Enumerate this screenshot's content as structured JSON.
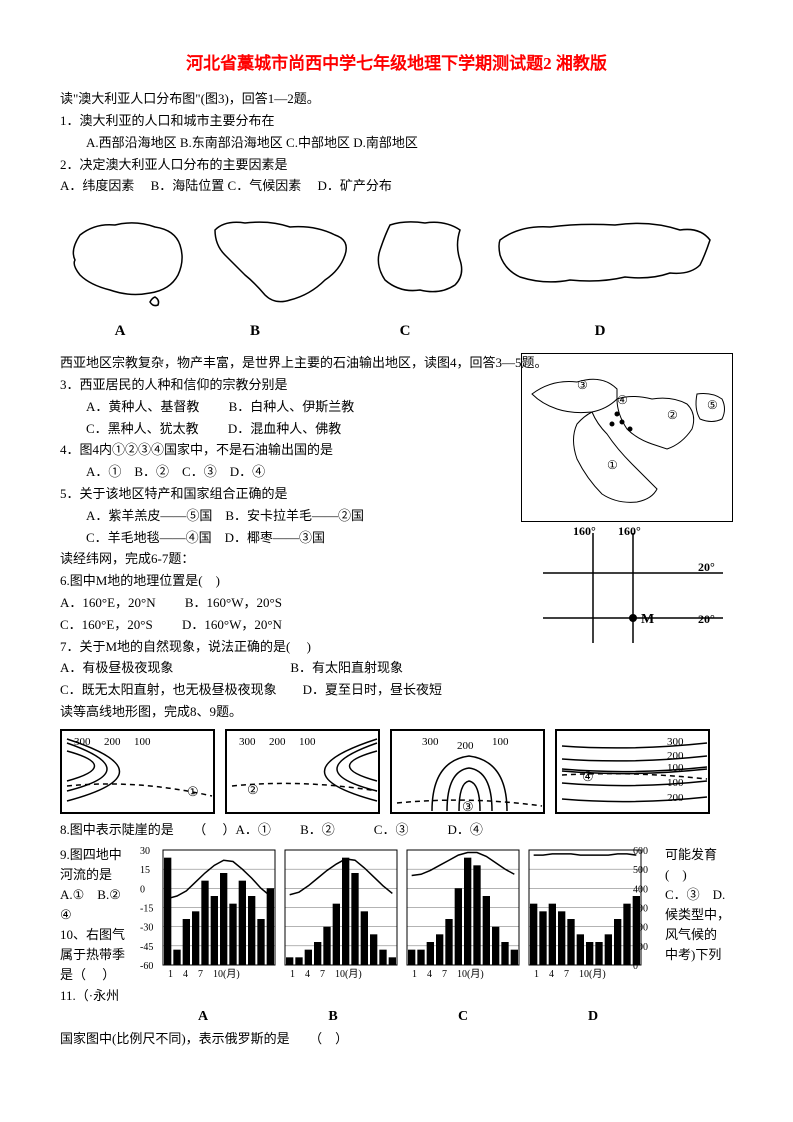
{
  "title": "河北省藁城市尚西中学七年级地理下学期测试题2 湘教版",
  "intro1": "读\"澳大利亚人口分布图\"(图3)，回答1—2题。",
  "q1": "1．澳大利亚的人口和城市主要分布在",
  "q1_opts": "A.西部沿海地区 B.东南部沿海地区 C.中部地区 D.南部地区",
  "q2": "2．决定澳大利亚人口分布的主要因素是",
  "q2_opts": "A．纬度因素　 B．海陆位置 C．气候因素　 D．矿产分布",
  "map_labels": {
    "a": "A",
    "b": "B",
    "c": "C",
    "d": "D"
  },
  "intro2": "西亚地区宗教复杂，物产丰富，是世界上主要的石油输出地区，读图4，回答3—5题。",
  "q3": "3．西亚居民的人种和信仰的宗教分别是",
  "q3a": "A．黄种人、基督教　　 B．白种人、伊斯兰教",
  "q3b": "C．黑种人、犹太教　　 D．混血种人、佛教",
  "q4": "4．图4内①②③④国家中，不是石油输出国的是",
  "q4_opts": "A．①　B．②　C．③　D．④",
  "q5": "5．关于该地区特产和国家组合正确的是",
  "q5a": "A．紫羊羔皮——⑤国　B．安卡拉羊毛——②国",
  "q5b": "C．羊毛地毯——④国　D．椰枣——③国",
  "intro3": "读经纬网，完成6-7题：",
  "q6": "6.图中M地的地理位置是(　)",
  "q6a": "A．160°E，20°N　　 B．160°W，20°S",
  "q6b": "C．160°E，20°S 　　D．160°W，20°N",
  "q7": "7．关于M地的自然现象，说法正确的是(　 )",
  "q7a": "A．有极昼极夜现象　　　　　　　　　B．有太阳直射现象",
  "q7b": "C．既无太阳直射，也无极昼极夜现象　　D．夏至日时，昼长夜短",
  "intro4": "读等高线地形图，完成8、9题。",
  "contour_vals": {
    "c1": [
      "300",
      "200",
      "100"
    ],
    "c2": [
      "300",
      "200",
      "100"
    ],
    "c3": [
      "300",
      "200",
      "100"
    ],
    "c4": [
      "300",
      "200",
      "100",
      "100",
      "200"
    ]
  },
  "contour_nums": [
    "①",
    "②",
    "③",
    "④"
  ],
  "q8": "8.图中表示陡崖的是　　（　 ）A．①　　 B．②　　　C．③　　　D．④",
  "q9_left": {
    "l1": "9.图四地中",
    "l2": "河流的是",
    "l3": "A.①　B.②",
    "l4": "④",
    "l5": "10、右图气",
    "l6": "属于热带季",
    "l7": "是（　 ）",
    "l8": "11.（·永州"
  },
  "q9_right": {
    "r1": "可能发育",
    "r2": "(　)",
    "r3": "C．③　D.",
    "r4": "",
    "r5": "候类型中，",
    "r6": "风气候的",
    "r7": "",
    "r8": "中考)下列"
  },
  "climate_y_left": [
    "30",
    "15",
    "0",
    "-15",
    "-30",
    "-45",
    "-60"
  ],
  "climate_y_right": [
    "600",
    "500",
    "400",
    "300",
    "200",
    "100",
    "0"
  ],
  "climate_x": "1　4　7　10(月)",
  "climate_labels": {
    "a": "A",
    "b": "B",
    "c": "C",
    "d": "D"
  },
  "q11": "国家图中(比例尺不同)，表示俄罗斯的是　　（　）",
  "latlon": {
    "lon1": "160°",
    "lon2": "160°",
    "lat1": "20°",
    "lat2": "20°",
    "m": "M"
  },
  "westasia_nums": [
    "①",
    "②",
    "③",
    "④",
    "⑤"
  ],
  "colors": {
    "title": "#ff0000",
    "text": "#000000",
    "stroke": "#000000",
    "bg": "#ffffff"
  },
  "climate_data": {
    "A": {
      "temp": [
        -8,
        -6,
        -2,
        5,
        12,
        18,
        22,
        21,
        15,
        8,
        0,
        -6
      ],
      "precip": [
        14,
        2,
        6,
        7,
        11,
        9,
        12,
        8,
        11,
        9,
        6,
        10
      ]
    },
    "B": {
      "temp": [
        -5,
        -3,
        2,
        8,
        14,
        19,
        23,
        22,
        16,
        9,
        2,
        -4
      ],
      "precip": [
        1,
        1,
        2,
        3,
        5,
        8,
        14,
        12,
        7,
        4,
        2,
        1
      ]
    },
    "C": {
      "temp": [
        10,
        11,
        14,
        18,
        22,
        26,
        28,
        28,
        25,
        20,
        15,
        11
      ],
      "precip": [
        2,
        2,
        3,
        4,
        6,
        10,
        14,
        13,
        9,
        5,
        3,
        2
      ]
    },
    "D": {
      "temp": [
        26,
        26,
        27,
        27,
        27,
        26,
        26,
        26,
        26,
        27,
        27,
        26
      ],
      "precip": [
        8,
        7,
        8,
        7,
        6,
        4,
        3,
        3,
        4,
        6,
        8,
        9
      ]
    }
  }
}
